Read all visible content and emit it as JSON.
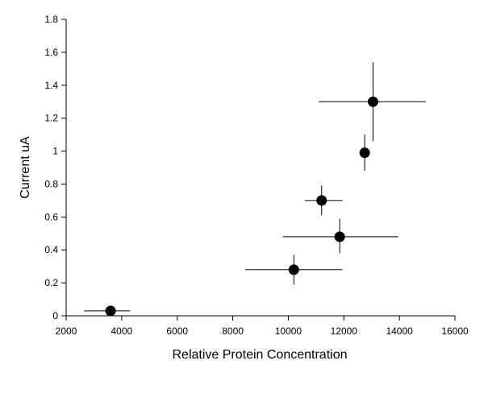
{
  "chart_data": {
    "type": "scatter",
    "title": "",
    "xlabel": "Relative Protein Concentration",
    "ylabel": "Current  uA",
    "xlim": [
      2000,
      16000
    ],
    "ylim": [
      0,
      1.8
    ],
    "xticks": [
      "2000",
      "4000",
      "6000",
      "8000",
      "10000",
      "12000",
      "14000",
      "16000"
    ],
    "yticks": [
      "0",
      "0.2",
      "0.4",
      "0.6",
      "0.8",
      "1",
      "1.2",
      "1.4",
      "1.6",
      "1.8"
    ],
    "grid": false,
    "legend": "none",
    "marker_color": "#000000",
    "points": [
      {
        "x": 3600,
        "y": 0.03,
        "xerr_low": 2650,
        "xerr_high": 4300,
        "yerr_low": 0.03,
        "yerr_high": 0.03
      },
      {
        "x": 10200,
        "y": 0.28,
        "xerr_low": 8450,
        "xerr_high": 11950,
        "yerr_low": 0.19,
        "yerr_high": 0.37
      },
      {
        "x": 11850,
        "y": 0.48,
        "xerr_low": 9800,
        "xerr_high": 13950,
        "yerr_low": 0.38,
        "yerr_high": 0.59
      },
      {
        "x": 11200,
        "y": 0.7,
        "xerr_low": 10600,
        "xerr_high": 11950,
        "yerr_low": 0.61,
        "yerr_high": 0.79
      },
      {
        "x": 12750,
        "y": 0.99,
        "xerr_low": 12750,
        "xerr_high": 12750,
        "yerr_low": 0.88,
        "yerr_high": 1.1
      },
      {
        "x": 13050,
        "y": 1.3,
        "xerr_low": 11100,
        "xerr_high": 14950,
        "yerr_low": 1.06,
        "yerr_high": 1.54
      }
    ]
  }
}
